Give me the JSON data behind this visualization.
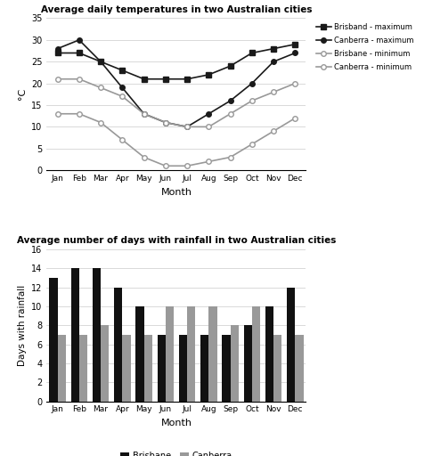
{
  "months": [
    "Jan",
    "Feb",
    "Mar",
    "Apr",
    "May",
    "Jun",
    "Jul",
    "Aug",
    "Sep",
    "Oct",
    "Nov",
    "Dec"
  ],
  "brisbane_max": [
    27,
    27,
    25,
    23,
    21,
    21,
    21,
    22,
    24,
    27,
    28,
    29
  ],
  "canberra_max": [
    28,
    30,
    25,
    19,
    13,
    11,
    10,
    13,
    16,
    20,
    25,
    27
  ],
  "brisbane_min": [
    21,
    21,
    19,
    17,
    13,
    11,
    10,
    10,
    13,
    16,
    18,
    20
  ],
  "canberra_min": [
    13,
    13,
    11,
    7,
    3,
    1,
    1,
    2,
    3,
    6,
    9,
    12
  ],
  "brisbane_rain": [
    13,
    14,
    14,
    12,
    10,
    7,
    7,
    7,
    7,
    8,
    10,
    12
  ],
  "canberra_rain": [
    7,
    7,
    8,
    7,
    7,
    10,
    10,
    10,
    8,
    10,
    7,
    7
  ],
  "line_title": "Average daily temperatures in two Australian cities",
  "bar_title": "Average number of days with rainfall in two Australian cities",
  "line_ylabel": "°C",
  "bar_ylabel": "Days with rainfall",
  "xlabel": "Month",
  "line_ylim": [
    0,
    35
  ],
  "bar_ylim": [
    0,
    16
  ],
  "line_yticks": [
    0,
    5,
    10,
    15,
    20,
    25,
    30,
    35
  ],
  "bar_yticks": [
    0,
    2,
    4,
    6,
    8,
    10,
    12,
    14,
    16
  ],
  "color_brisbane_max": "#1a1a1a",
  "color_canberra_max": "#1a1a1a",
  "color_brisbane_min": "#999999",
  "color_canberra_min": "#999999",
  "color_brisbane_bar": "#111111",
  "color_canberra_bar": "#999999",
  "legend_labels_line": [
    "Brisband - maximum",
    "Canberra - maximum",
    "Brisbane - minimum",
    "Canberra - minimum"
  ],
  "legend_labels_bar": [
    "Brisbane",
    "Canberra"
  ]
}
